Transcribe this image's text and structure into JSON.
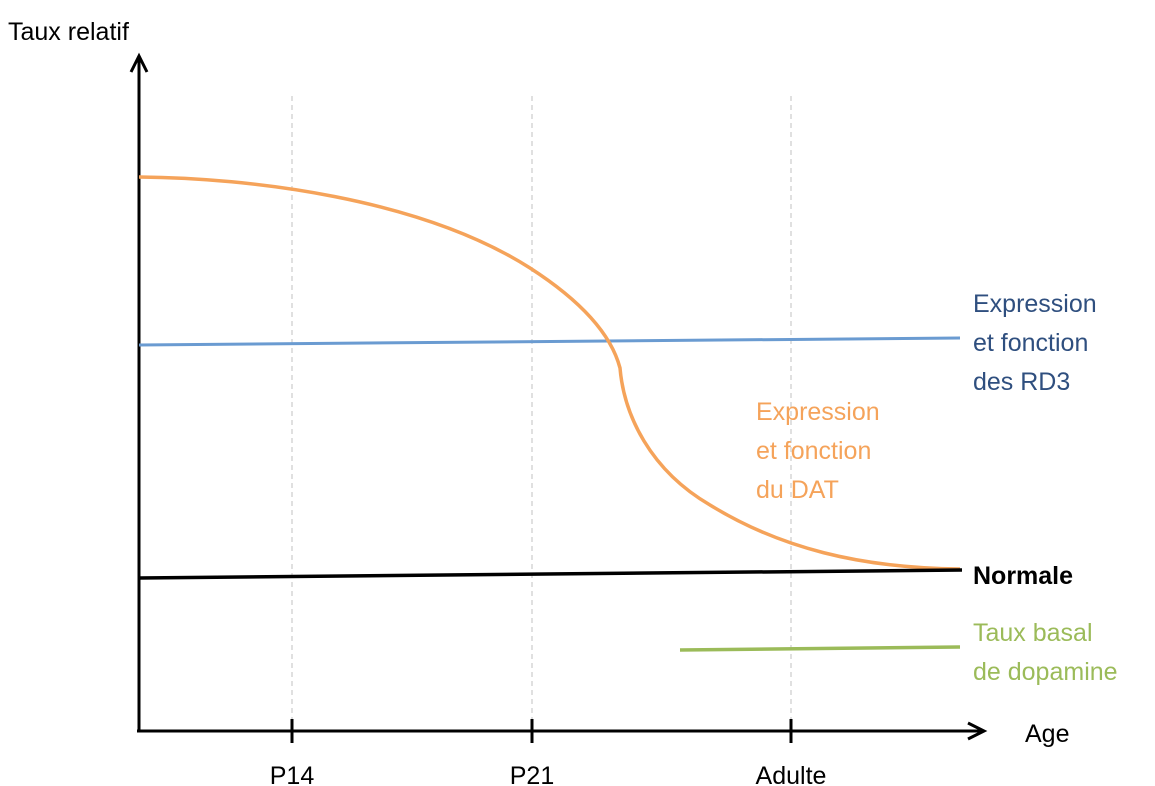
{
  "chart_data": {
    "type": "line",
    "ylabel": "Taux relatif",
    "xlabel": "Age",
    "categories": [
      "P14",
      "P21",
      "Adulte"
    ],
    "grid": true,
    "series": [
      {
        "key": "dat",
        "label_lines": [
          "Expression",
          "et fonction",
          "du DAT"
        ],
        "color": "#F5A35A",
        "bold": false
      },
      {
        "key": "rd3",
        "label_lines": [
          "Expression",
          "et fonction",
          "des RD3"
        ],
        "color": "#6A9BD1",
        "label_color": "#2F4F7F",
        "bold": false
      },
      {
        "key": "normale",
        "label_lines": [
          "Normale"
        ],
        "color": "#000000",
        "bold": true
      },
      {
        "key": "basal",
        "label_lines": [
          "Taux basal",
          "de dopamine"
        ],
        "color": "#9BBB59",
        "bold": false
      }
    ]
  }
}
